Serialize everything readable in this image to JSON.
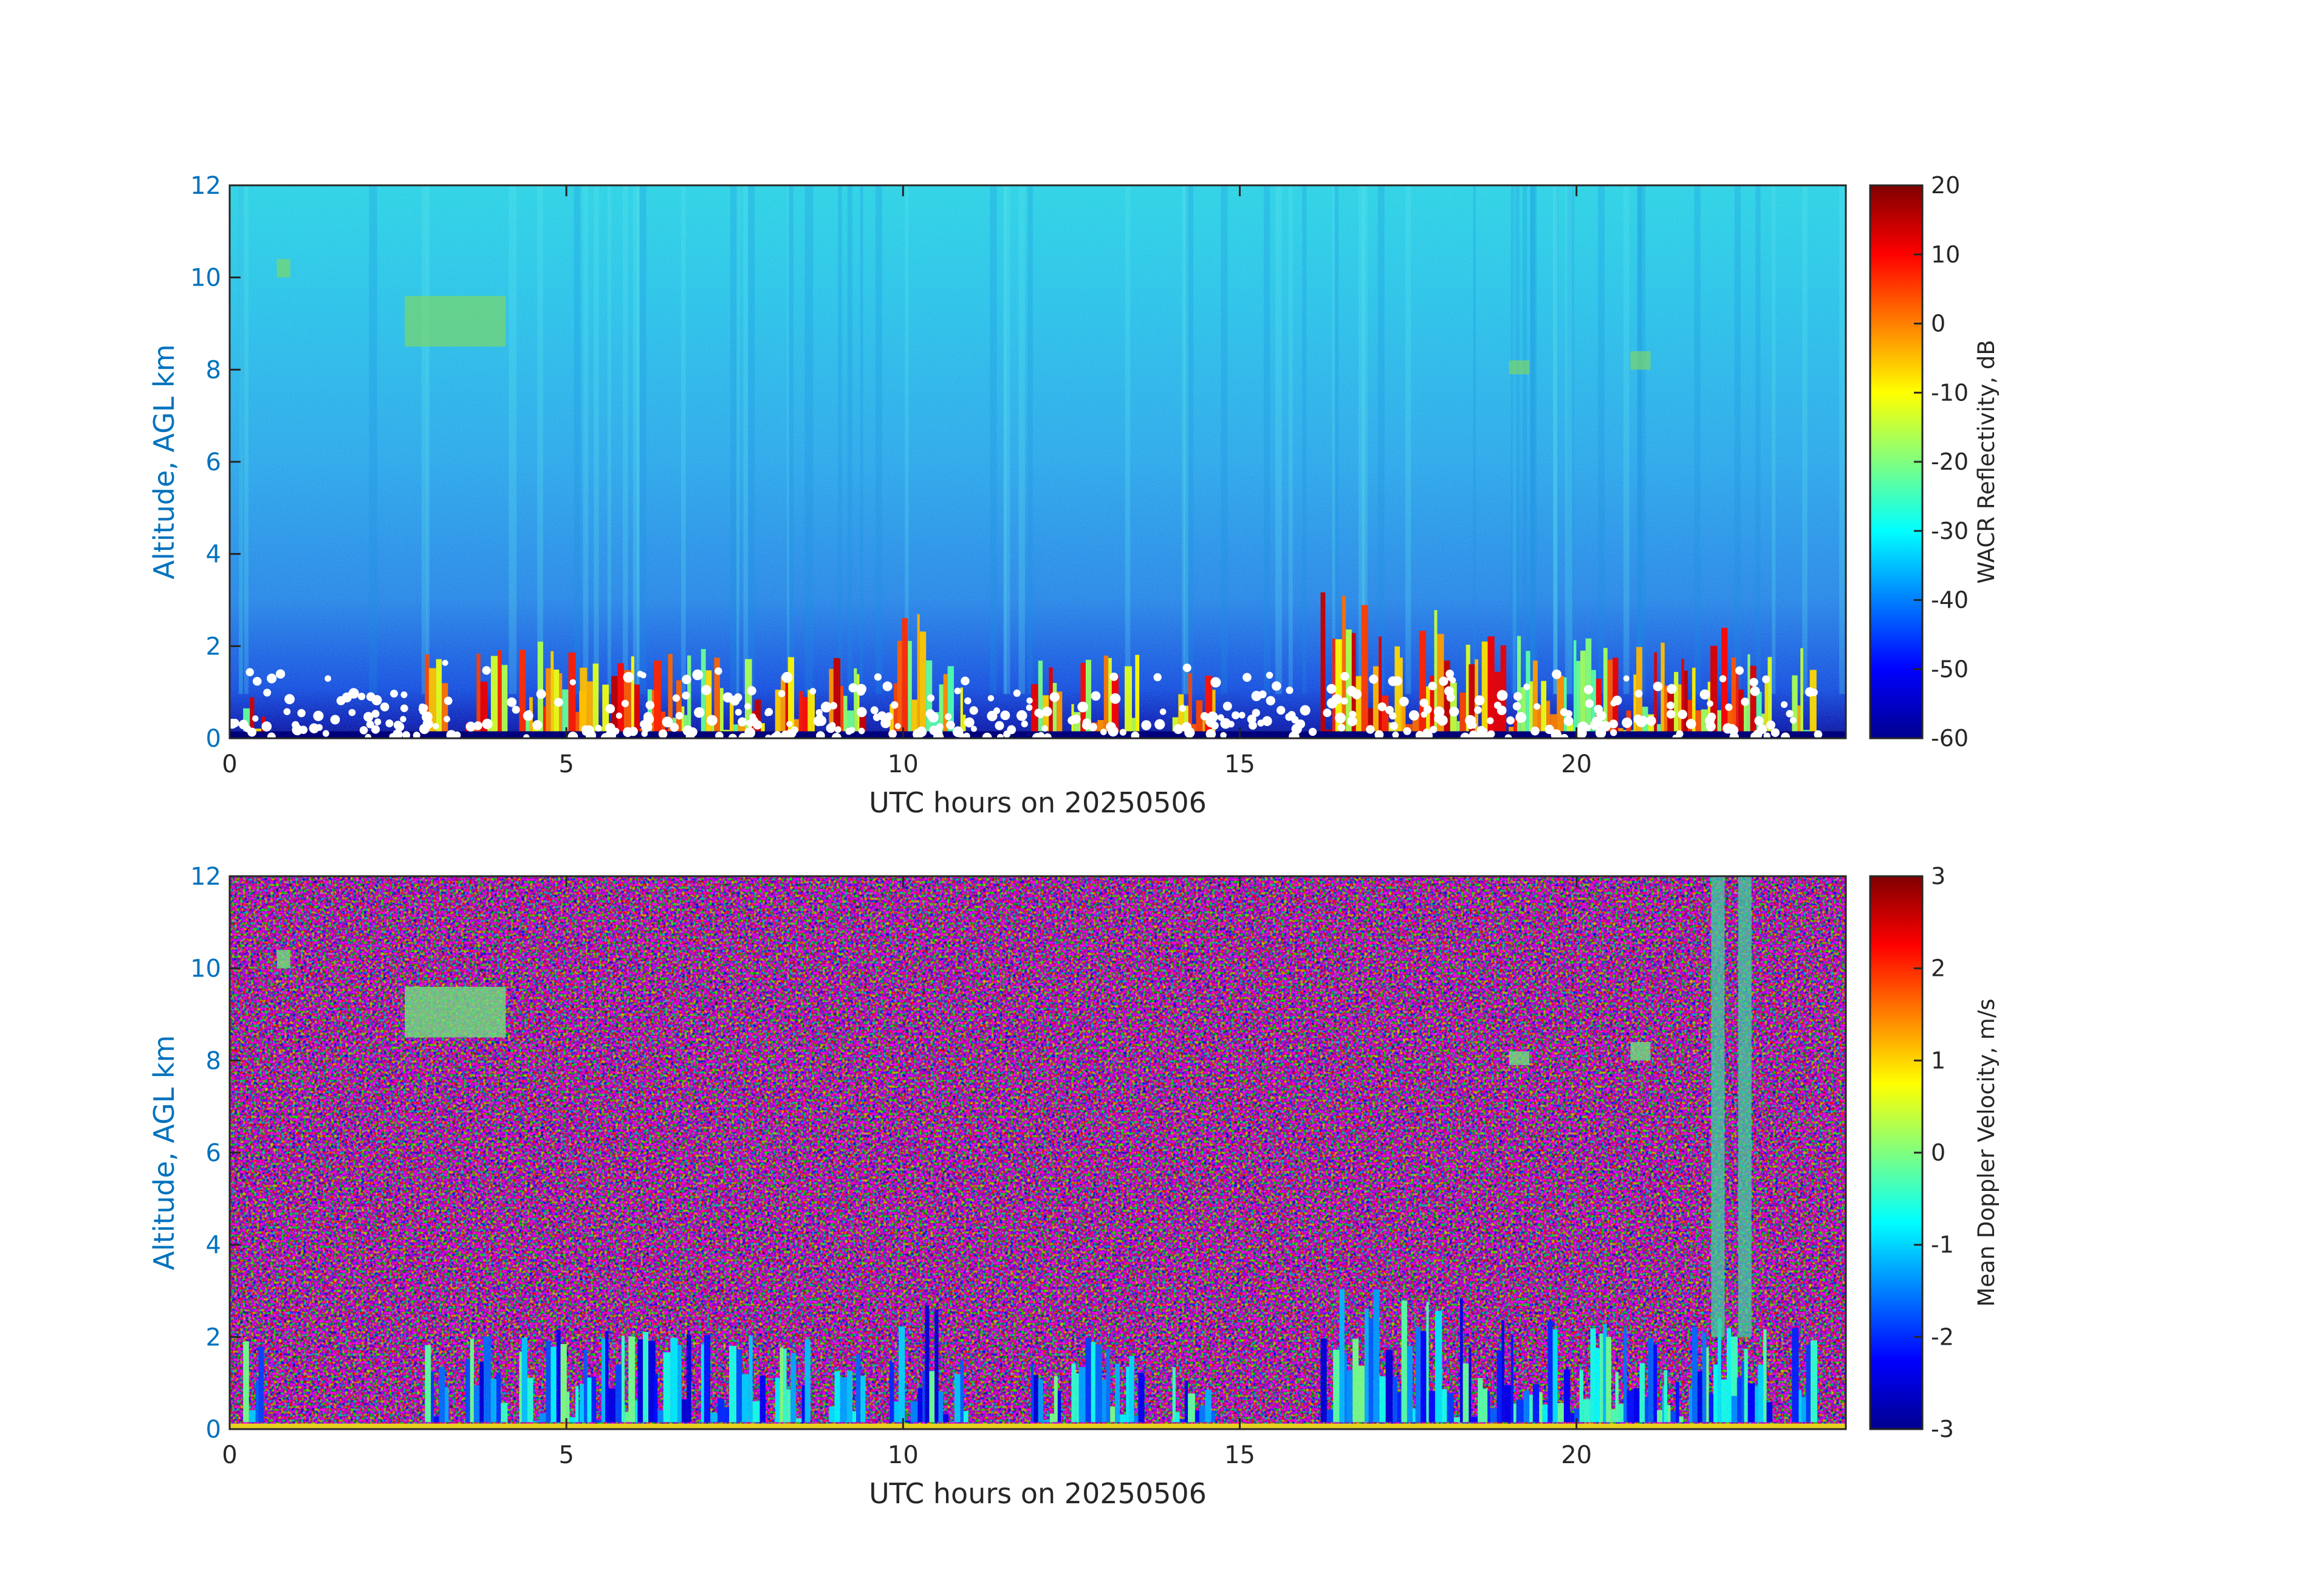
{
  "figure": {
    "background": "#ffffff"
  },
  "chart_data": [
    {
      "type": "heatmap",
      "title": "",
      "xlabel": "UTC hours on 20250506",
      "ylabel": "Altitude, AGL km",
      "xlim": [
        0,
        24
      ],
      "ylim": [
        0,
        12
      ],
      "xticks": [
        0,
        5,
        10,
        15,
        20
      ],
      "yticks": [
        0,
        2,
        4,
        6,
        8,
        10,
        12
      ],
      "grid": false,
      "colormap": "jet",
      "colorbar": {
        "label": "WACR Reflectivity, dB",
        "range": [
          -60,
          20
        ],
        "ticks": [
          -60,
          -50,
          -40,
          -30,
          -20,
          -10,
          0,
          10,
          20
        ]
      },
      "cloud_columns": [
        {
          "x": [
            0.2,
            0.5
          ],
          "top": 2.0
        },
        {
          "x": [
            2.9,
            3.2
          ],
          "top": 1.9
        },
        {
          "x": [
            3.5,
            4.1
          ],
          "top": 2.2
        },
        {
          "x": [
            4.3,
            5.2
          ],
          "top": 2.3
        },
        {
          "x": [
            5.2,
            6.3
          ],
          "top": 2.2
        },
        {
          "x": [
            6.3,
            6.8
          ],
          "top": 2.1
        },
        {
          "x": [
            7.0,
            7.9
          ],
          "top": 2.1
        },
        {
          "x": [
            8.1,
            8.6
          ],
          "top": 2.0
        },
        {
          "x": [
            8.9,
            9.4
          ],
          "top": 1.8
        },
        {
          "x": [
            9.8,
            10.9
          ],
          "top": 2.8
        },
        {
          "x": [
            11.9,
            12.3
          ],
          "top": 1.9
        },
        {
          "x": [
            12.5,
            13.5
          ],
          "top": 2.0
        },
        {
          "x": [
            14.0,
            14.6
          ],
          "top": 1.5
        },
        {
          "x": [
            16.2,
            17.4
          ],
          "top": 3.2
        },
        {
          "x": [
            17.4,
            18.4
          ],
          "top": 3.0
        },
        {
          "x": [
            18.4,
            19.3
          ],
          "top": 2.6
        },
        {
          "x": [
            19.3,
            20.4
          ],
          "top": 2.4
        },
        {
          "x": [
            20.4,
            21.3
          ],
          "top": 2.3
        },
        {
          "x": [
            21.3,
            22.3
          ],
          "top": 2.5
        },
        {
          "x": [
            22.3,
            22.9
          ],
          "top": 2.3
        },
        {
          "x": [
            23.2,
            23.5
          ],
          "top": 2.2
        }
      ],
      "upper_features": [
        {
          "x": [
            2.6,
            4.1
          ],
          "y": [
            8.5,
            9.6
          ]
        },
        {
          "x": [
            0.7,
            0.9
          ],
          "y": [
            10.0,
            10.4
          ]
        },
        {
          "x": [
            19.0,
            19.3
          ],
          "y": [
            7.9,
            8.2
          ]
        },
        {
          "x": [
            20.8,
            21.1
          ],
          "y": [
            8.0,
            8.4
          ]
        }
      ]
    },
    {
      "type": "heatmap",
      "title": "",
      "xlabel": "UTC hours on 20250506",
      "ylabel": "Altitude, AGL km",
      "xlim": [
        0,
        24
      ],
      "ylim": [
        0,
        12
      ],
      "xticks": [
        0,
        5,
        10,
        15,
        20
      ],
      "yticks": [
        0,
        2,
        4,
        6,
        8,
        10,
        12
      ],
      "grid": false,
      "colormap": "jet",
      "colorbar": {
        "label": "Mean Doppler Velocity, m/s",
        "range": [
          -3,
          3
        ],
        "ticks": [
          -3,
          -2,
          -1,
          0,
          1,
          2,
          3
        ]
      },
      "vertical_streaks": [
        {
          "x": [
            22.0,
            22.2
          ],
          "y": [
            2.0,
            12.0
          ]
        },
        {
          "x": [
            22.4,
            22.6
          ],
          "y": [
            2.0,
            12.0
          ]
        }
      ]
    }
  ]
}
